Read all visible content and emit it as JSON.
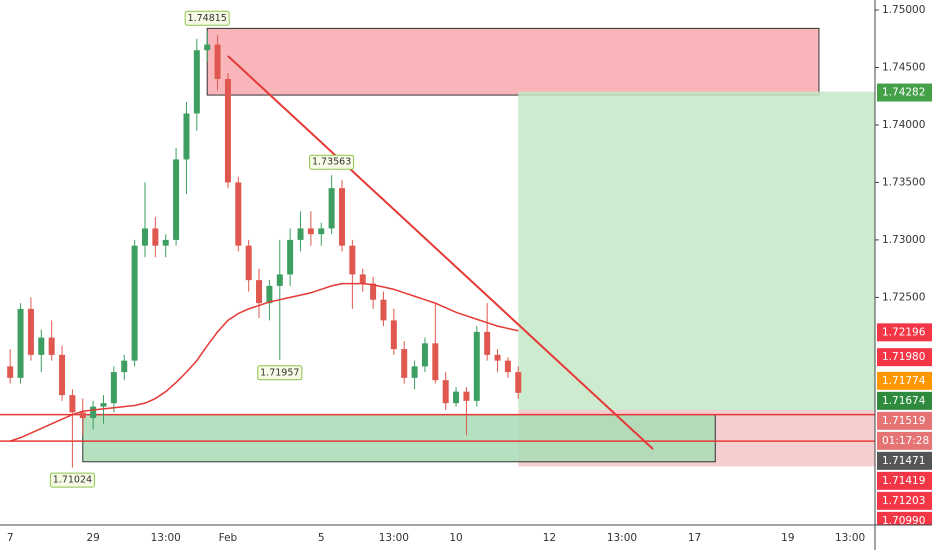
{
  "chart_data": {
    "type": "candlestick",
    "categories": [
      "7",
      null,
      null,
      null,
      null,
      null,
      null,
      null,
      "29",
      null,
      null,
      null,
      null,
      null,
      null,
      "13:00",
      null,
      null,
      null,
      null,
      null,
      "Feb",
      null,
      null,
      null,
      null,
      null,
      null,
      null,
      null,
      "5",
      null,
      null,
      null,
      null,
      null,
      null,
      "13:00",
      null,
      null,
      null,
      null,
      null,
      "10",
      null,
      null,
      null,
      null,
      null,
      null,
      null,
      null,
      "12",
      null,
      null,
      null,
      null,
      null,
      null,
      "13:00",
      null,
      null,
      null,
      null,
      null,
      null,
      "17",
      null,
      null,
      null,
      null,
      null,
      null,
      null,
      null,
      "19",
      null,
      null,
      null,
      null,
      null,
      "13:00",
      null,
      null
    ],
    "ohlc": [
      [
        1.719,
        1.7205,
        1.7175,
        1.718
      ],
      [
        1.718,
        1.7245,
        1.7175,
        1.724
      ],
      [
        1.724,
        1.725,
        1.7195,
        1.72
      ],
      [
        1.72,
        1.7222,
        1.7185,
        1.7215
      ],
      [
        1.7215,
        1.723,
        1.7195,
        1.72
      ],
      [
        1.72,
        1.7208,
        1.716,
        1.7165
      ],
      [
        1.7165,
        1.717,
        1.7102,
        1.715
      ],
      [
        1.715,
        1.7162,
        1.713,
        1.7145
      ],
      [
        1.7145,
        1.716,
        1.7135,
        1.7155
      ],
      [
        1.7155,
        1.7165,
        1.714,
        1.7158
      ],
      [
        1.7158,
        1.719,
        1.715,
        1.7185
      ],
      [
        1.7185,
        1.72,
        1.7178,
        1.7195
      ],
      [
        1.7195,
        1.73,
        1.719,
        1.7295
      ],
      [
        1.7295,
        1.735,
        1.7285,
        1.731
      ],
      [
        1.731,
        1.732,
        1.7285,
        1.7295
      ],
      [
        1.7295,
        1.7305,
        1.7285,
        1.73
      ],
      [
        1.73,
        1.738,
        1.7295,
        1.737
      ],
      [
        1.737,
        1.742,
        1.734,
        1.741
      ],
      [
        1.741,
        1.7475,
        1.7395,
        1.7465
      ],
      [
        1.7465,
        1.74815,
        1.7455,
        1.747
      ],
      [
        1.747,
        1.7478,
        1.743,
        1.744
      ],
      [
        1.744,
        1.7445,
        1.7345,
        1.735
      ],
      [
        1.735,
        1.7355,
        1.729,
        1.7295
      ],
      [
        1.7295,
        1.73,
        1.7255,
        1.7265
      ],
      [
        1.7265,
        1.7275,
        1.7232,
        1.7245
      ],
      [
        1.7245,
        1.7265,
        1.723,
        1.726
      ],
      [
        1.726,
        1.73,
        1.71957,
        1.727
      ],
      [
        1.727,
        1.731,
        1.726,
        1.73
      ],
      [
        1.73,
        1.7325,
        1.729,
        1.731
      ],
      [
        1.731,
        1.7325,
        1.7295,
        1.7305
      ],
      [
        1.7305,
        1.7315,
        1.7295,
        1.731
      ],
      [
        1.731,
        1.73563,
        1.7305,
        1.7345
      ],
      [
        1.7345,
        1.7352,
        1.729,
        1.7295
      ],
      [
        1.7295,
        1.73,
        1.724,
        1.727
      ],
      [
        1.727,
        1.7275,
        1.7255,
        1.7262
      ],
      [
        1.7262,
        1.7268,
        1.724,
        1.7248
      ],
      [
        1.7248,
        1.7255,
        1.7225,
        1.723
      ],
      [
        1.723,
        1.724,
        1.72,
        1.7205
      ],
      [
        1.7205,
        1.7212,
        1.7175,
        1.718
      ],
      [
        1.718,
        1.7195,
        1.717,
        1.719
      ],
      [
        1.719,
        1.7215,
        1.7185,
        1.721
      ],
      [
        1.721,
        1.7245,
        1.7175,
        1.7178
      ],
      [
        1.7178,
        1.7185,
        1.7152,
        1.7158
      ],
      [
        1.7158,
        1.7172,
        1.7155,
        1.7168
      ],
      [
        1.7168,
        1.7172,
        1.713,
        1.716
      ],
      [
        1.716,
        1.7225,
        1.7155,
        1.722
      ],
      [
        1.722,
        1.7245,
        1.7195,
        1.72
      ],
      [
        1.72,
        1.7205,
        1.7185,
        1.7195
      ],
      [
        1.7195,
        1.7198,
        1.718,
        1.7185
      ],
      [
        1.7185,
        1.719,
        1.7162,
        1.7167
      ],
      null,
      null,
      null,
      null,
      null,
      null,
      null,
      null,
      null,
      null,
      null,
      null,
      null,
      null,
      null,
      null,
      null,
      null,
      null,
      null,
      null,
      null,
      null,
      null,
      null,
      null,
      null,
      null,
      null,
      null,
      null,
      null,
      null,
      null
    ],
    "ma": [
      1.7125,
      1.7128,
      1.7132,
      1.7136,
      1.714,
      1.7144,
      1.7148,
      1.7151,
      1.7152,
      1.7153,
      1.7154,
      1.7155,
      1.7156,
      1.7158,
      1.7162,
      1.7168,
      1.7176,
      1.7185,
      1.7195,
      1.7208,
      1.722,
      1.723,
      1.7236,
      1.724,
      1.7243,
      1.7246,
      1.7248,
      1.725,
      1.7252,
      1.7254,
      1.7257,
      1.726,
      1.7262,
      1.7262,
      1.7262,
      1.7261,
      1.7259,
      1.7257,
      1.7254,
      1.7251,
      1.7248,
      1.7245,
      1.7241,
      1.7237,
      1.7234,
      1.7231,
      1.7228,
      1.7225,
      1.7223,
      1.7221,
      null,
      null,
      null,
      null,
      null,
      null,
      null,
      null,
      null,
      null,
      null,
      null,
      null,
      null,
      null,
      null,
      null,
      null,
      null,
      null,
      null,
      null,
      null,
      null,
      null,
      null,
      null,
      null,
      null,
      null,
      null,
      null,
      null,
      null
    ],
    "up_color": "#3d9e62",
    "down_color": "#e0574f",
    "ma_color": "#e53935",
    "ylim": [
      1.7052,
      1.75087
    ],
    "yticks": [
      {
        "value": 1.75,
        "label": "1.75000"
      },
      {
        "value": 1.745,
        "label": "1.74500"
      },
      {
        "value": 1.74,
        "label": "1.74000"
      },
      {
        "value": 1.735,
        "label": "1.73500"
      },
      {
        "value": 1.73,
        "label": "1.73000"
      },
      {
        "value": 1.725,
        "label": "1.72500"
      }
    ],
    "zones": [
      {
        "top": 1.7484,
        "bottom": 1.7426,
        "from": 19,
        "to": 78,
        "color": "#f8a9ae",
        "border": "#333333"
      },
      {
        "top": 1.7429,
        "bottom": 1.7152,
        "from": 49,
        "to": 84,
        "color": "#c4e8c5",
        "border": "none"
      },
      {
        "top": 1.7152,
        "bottom": 1.7103,
        "from": 49,
        "to": 84,
        "color": "#f3c6c8",
        "border": "none"
      },
      {
        "top": 1.7148,
        "bottom": 1.7107,
        "from": 7,
        "to": 68,
        "color": "#a9dcb6",
        "border": "#333333"
      }
    ],
    "levels": [
      1.7148,
      1.7125
    ],
    "level_color": "#e53935",
    "trendline": {
      "from": [
        21,
        1.746
      ],
      "to": [
        62,
        1.7118
      ],
      "color": "#e53935"
    },
    "annotations": [
      {
        "value": 1.74815,
        "index": 19,
        "position": "above"
      },
      {
        "value": 1.73563,
        "index": 31,
        "position": "above"
      },
      {
        "value": 1.71957,
        "index": 26,
        "position": "below"
      },
      {
        "value": 1.71024,
        "index": 6,
        "position": "below"
      }
    ],
    "price_labels": [
      {
        "value": 1.74282,
        "label": "1.74282",
        "color": "#43a047"
      },
      {
        "value": 1.72196,
        "label": "1.72196",
        "color": "#f23645"
      },
      {
        "value": 1.7198,
        "label": "1.71980",
        "color": "#f23645"
      },
      {
        "value": 1.71774,
        "label": "1.71774",
        "color": "#ff9800"
      },
      {
        "value": 1.71674,
        "label": "1.71674",
        "color": "#2e8b3e"
      },
      {
        "value": 1.71519,
        "label": "1.71519",
        "color": "#e57373"
      },
      {
        "label": "01:17:28",
        "color": "#e57373"
      },
      {
        "value": 1.71471,
        "label": "1.71471",
        "color": "#555555"
      },
      {
        "value": 1.71419,
        "label": "1.71419",
        "color": "#f23645"
      },
      {
        "value": 1.71203,
        "label": "1.71203",
        "color": "#f23645"
      },
      {
        "value": 1.7099,
        "label": "1.70990",
        "color": "#f23645"
      }
    ]
  }
}
